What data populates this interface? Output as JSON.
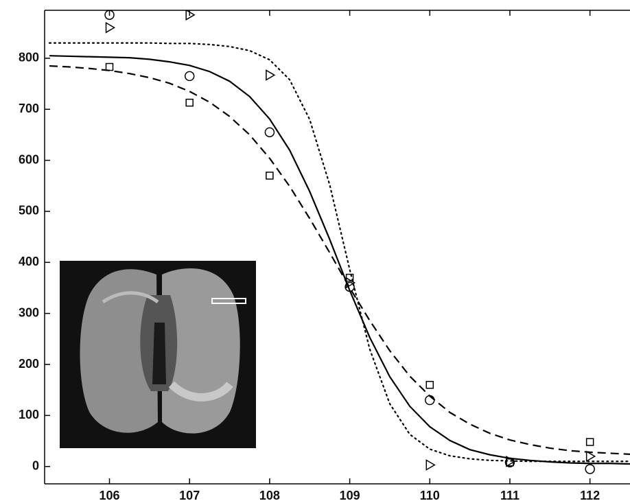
{
  "chart_data": {
    "type": "line",
    "xlim": [
      105.19,
      112.5
    ],
    "ylim": [
      -34,
      894
    ],
    "xticks": [
      106,
      107,
      108,
      109,
      110,
      111,
      112
    ],
    "yticks": [
      0,
      100,
      200,
      300,
      400,
      500,
      600,
      700,
      800
    ],
    "grid": false,
    "series": [
      {
        "color": "#000000",
        "dash": "solid",
        "x": [
          105.25,
          105.5,
          105.75,
          106,
          106.25,
          106.5,
          106.75,
          107,
          107.25,
          107.5,
          107.75,
          108,
          108.25,
          108.5,
          108.75,
          109,
          109.25,
          109.5,
          109.75,
          110,
          110.25,
          110.5,
          110.75,
          111,
          111.25,
          111.5,
          111.75,
          112,
          112.25,
          112.5
        ],
        "values": [
          805,
          804,
          803,
          802,
          801,
          798,
          793,
          786,
          774,
          755,
          725,
          681,
          620,
          539,
          445,
          345,
          253,
          176,
          118,
          78,
          51,
          33,
          23,
          16,
          12,
          9,
          7,
          6,
          6,
          5
        ]
      },
      {
        "color": "#000000",
        "dash": "dashed",
        "x": [
          105.25,
          105.5,
          105.75,
          106,
          106.25,
          106.5,
          106.75,
          107,
          107.25,
          107.5,
          107.75,
          108,
          108.25,
          108.5,
          108.75,
          109,
          109.25,
          109.5,
          109.75,
          110,
          110.25,
          110.5,
          110.75,
          111,
          111.25,
          111.5,
          111.75,
          112,
          112.25,
          112.5
        ],
        "values": [
          785,
          783,
          780,
          776,
          770,
          762,
          751,
          735,
          714,
          686,
          650,
          604,
          549,
          486,
          419,
          350,
          286,
          227,
          177,
          138,
          106,
          83,
          65,
          52,
          43,
          36,
          31,
          28,
          26,
          24
        ]
      },
      {
        "color": "#000000",
        "dash": "dotted",
        "x": [
          105.25,
          105.5,
          105.75,
          106,
          106.25,
          106.5,
          106.75,
          107,
          107.25,
          107.5,
          107.75,
          108,
          108.25,
          108.5,
          108.75,
          109,
          109.25,
          109.5,
          109.75,
          110,
          110.25,
          110.5,
          110.75,
          111,
          111.25,
          111.5,
          111.75,
          112,
          112.25,
          112.5
        ],
        "values": [
          830,
          830,
          830,
          830,
          830,
          830,
          829,
          829,
          827,
          823,
          815,
          797,
          758,
          680,
          552,
          386,
          230,
          123,
          63,
          34,
          21,
          15,
          12,
          11,
          10,
          10,
          10,
          10,
          10,
          10
        ]
      },
      {
        "color": "#000000",
        "marker": "circle",
        "x": [
          106,
          107,
          108,
          109,
          110,
          111,
          112
        ],
        "values": [
          885,
          765,
          655,
          352,
          130,
          8,
          -5
        ]
      },
      {
        "color": "#000000",
        "marker": "square",
        "x": [
          106,
          107,
          108,
          109,
          110,
          111,
          112
        ],
        "values": [
          783,
          713,
          570,
          370,
          160,
          8,
          48
        ]
      },
      {
        "color": "#000000",
        "marker": "triangle",
        "x": [
          106,
          107,
          108,
          109,
          110,
          111,
          112
        ],
        "values": [
          860,
          885,
          767,
          360,
          3,
          10,
          20
        ]
      }
    ]
  }
}
